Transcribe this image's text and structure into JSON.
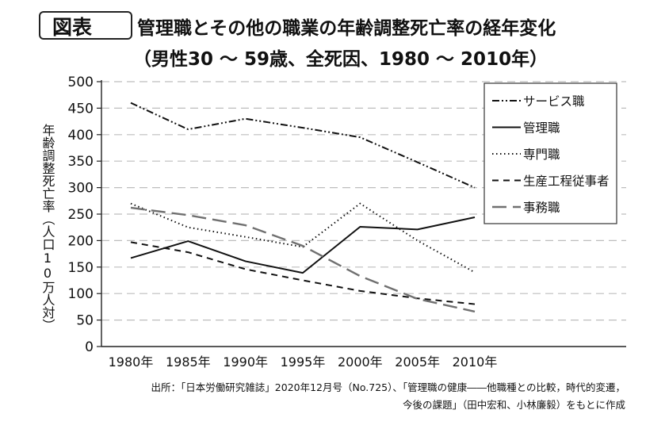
{
  "header": {
    "badge": "図表",
    "title_line1": "管理職とその他の職業の年齢調整死亡率の経年変化",
    "title_line2": "（男性30 ～ 59歳、全死因、1980 ～ 2010年）"
  },
  "source": {
    "line1": "出所：「日本労働研究雑誌」2020年12月号（No.725）、「管理職の健康――他職種との比較，時代的変遷，",
    "line2": "今後の課題」（田中宏和、小林廉毅）をもとに作成"
  },
  "chart_data": {
    "type": "line",
    "title": "管理職とその他の職業の年齢調整死亡率の経年変化",
    "subtitle": "（男性30 ～ 59歳、全死因、1980 ～ 2010年）",
    "ylabel": "年齢調整死亡率（人口10万人対）",
    "categories": [
      "1980年",
      "1985年",
      "1990年",
      "1995年",
      "2000年",
      "2005年",
      "2010年"
    ],
    "ylim": [
      0,
      500
    ],
    "yticks": [
      0,
      50,
      100,
      150,
      200,
      250,
      300,
      350,
      400,
      450,
      500
    ],
    "grid": "horizontal-dashed",
    "legend_position": "top-right",
    "series": [
      {
        "name": "サービス職",
        "values": [
          460,
          410,
          430,
          413,
          395,
          348,
          300
        ],
        "color": "#111111",
        "dash": "9,3,2,3,2,3"
      },
      {
        "name": "管理職",
        "values": [
          167,
          199,
          161,
          139,
          226,
          221,
          244
        ],
        "color": "#111111",
        "dash": ""
      },
      {
        "name": "専門職",
        "values": [
          270,
          225,
          207,
          188,
          270,
          200,
          140
        ],
        "color": "#111111",
        "dash": "1.5,3.5"
      },
      {
        "name": "生産工程従事者",
        "values": [
          197,
          178,
          146,
          125,
          105,
          91,
          80
        ],
        "color": "#111111",
        "dash": "8,6"
      },
      {
        "name": "事務職",
        "values": [
          262,
          248,
          229,
          190,
          133,
          90,
          66
        ],
        "color": "#707070",
        "dash": "18,8"
      }
    ]
  }
}
